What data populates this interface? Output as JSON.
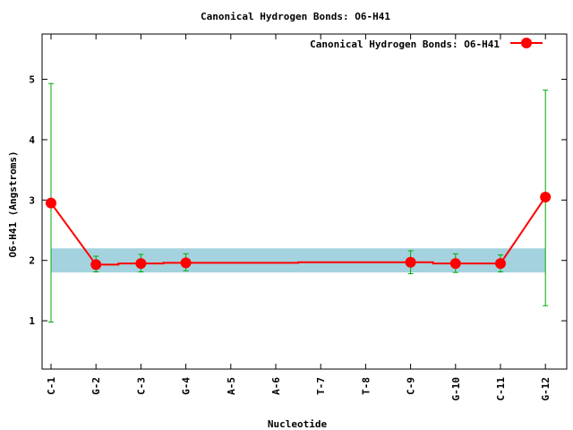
{
  "chart_data": {
    "type": "line",
    "title": "Canonical Hydrogen Bonds: O6-H41",
    "xlabel": "Nucleotide",
    "ylabel": "O6-H41 (Angstroms)",
    "categories": [
      "C-1",
      "G-2",
      "C-3",
      "G-4",
      "A-5",
      "A-6",
      "T-7",
      "T-8",
      "C-9",
      "G-10",
      "C-11",
      "G-12"
    ],
    "ylim": [
      0.2,
      5.75
    ],
    "yticks": [
      1,
      2,
      3,
      4,
      5
    ],
    "reference_band": {
      "low": 1.8,
      "high": 2.2,
      "color": "#a4d3df"
    },
    "series": [
      {
        "name": "Canonical Hydrogen Bonds: O6-H41",
        "color": "#ff0000",
        "errorbar_color": "#00aa00",
        "points": [
          {
            "x": "C-1",
            "y": 2.95,
            "err_low": 0.98,
            "err_high": 4.93
          },
          {
            "x": "G-2",
            "y": 1.93,
            "err_low": 1.81,
            "err_high": 2.07
          },
          {
            "x": "C-3",
            "y": 1.95,
            "err_low": 1.81,
            "err_high": 2.1
          },
          {
            "x": "G-4",
            "y": 1.96,
            "err_low": 1.83,
            "err_high": 2.11
          },
          {
            "x": "C-9",
            "y": 1.97,
            "err_low": 1.78,
            "err_high": 2.16
          },
          {
            "x": "G-10",
            "y": 1.95,
            "err_low": 1.8,
            "err_high": 2.11
          },
          {
            "x": "C-11",
            "y": 1.95,
            "err_low": 1.81,
            "err_high": 2.09
          },
          {
            "x": "G-12",
            "y": 3.05,
            "err_low": 1.25,
            "err_high": 4.82
          }
        ]
      }
    ],
    "legend": {
      "position": "top-right"
    },
    "grid": false
  }
}
